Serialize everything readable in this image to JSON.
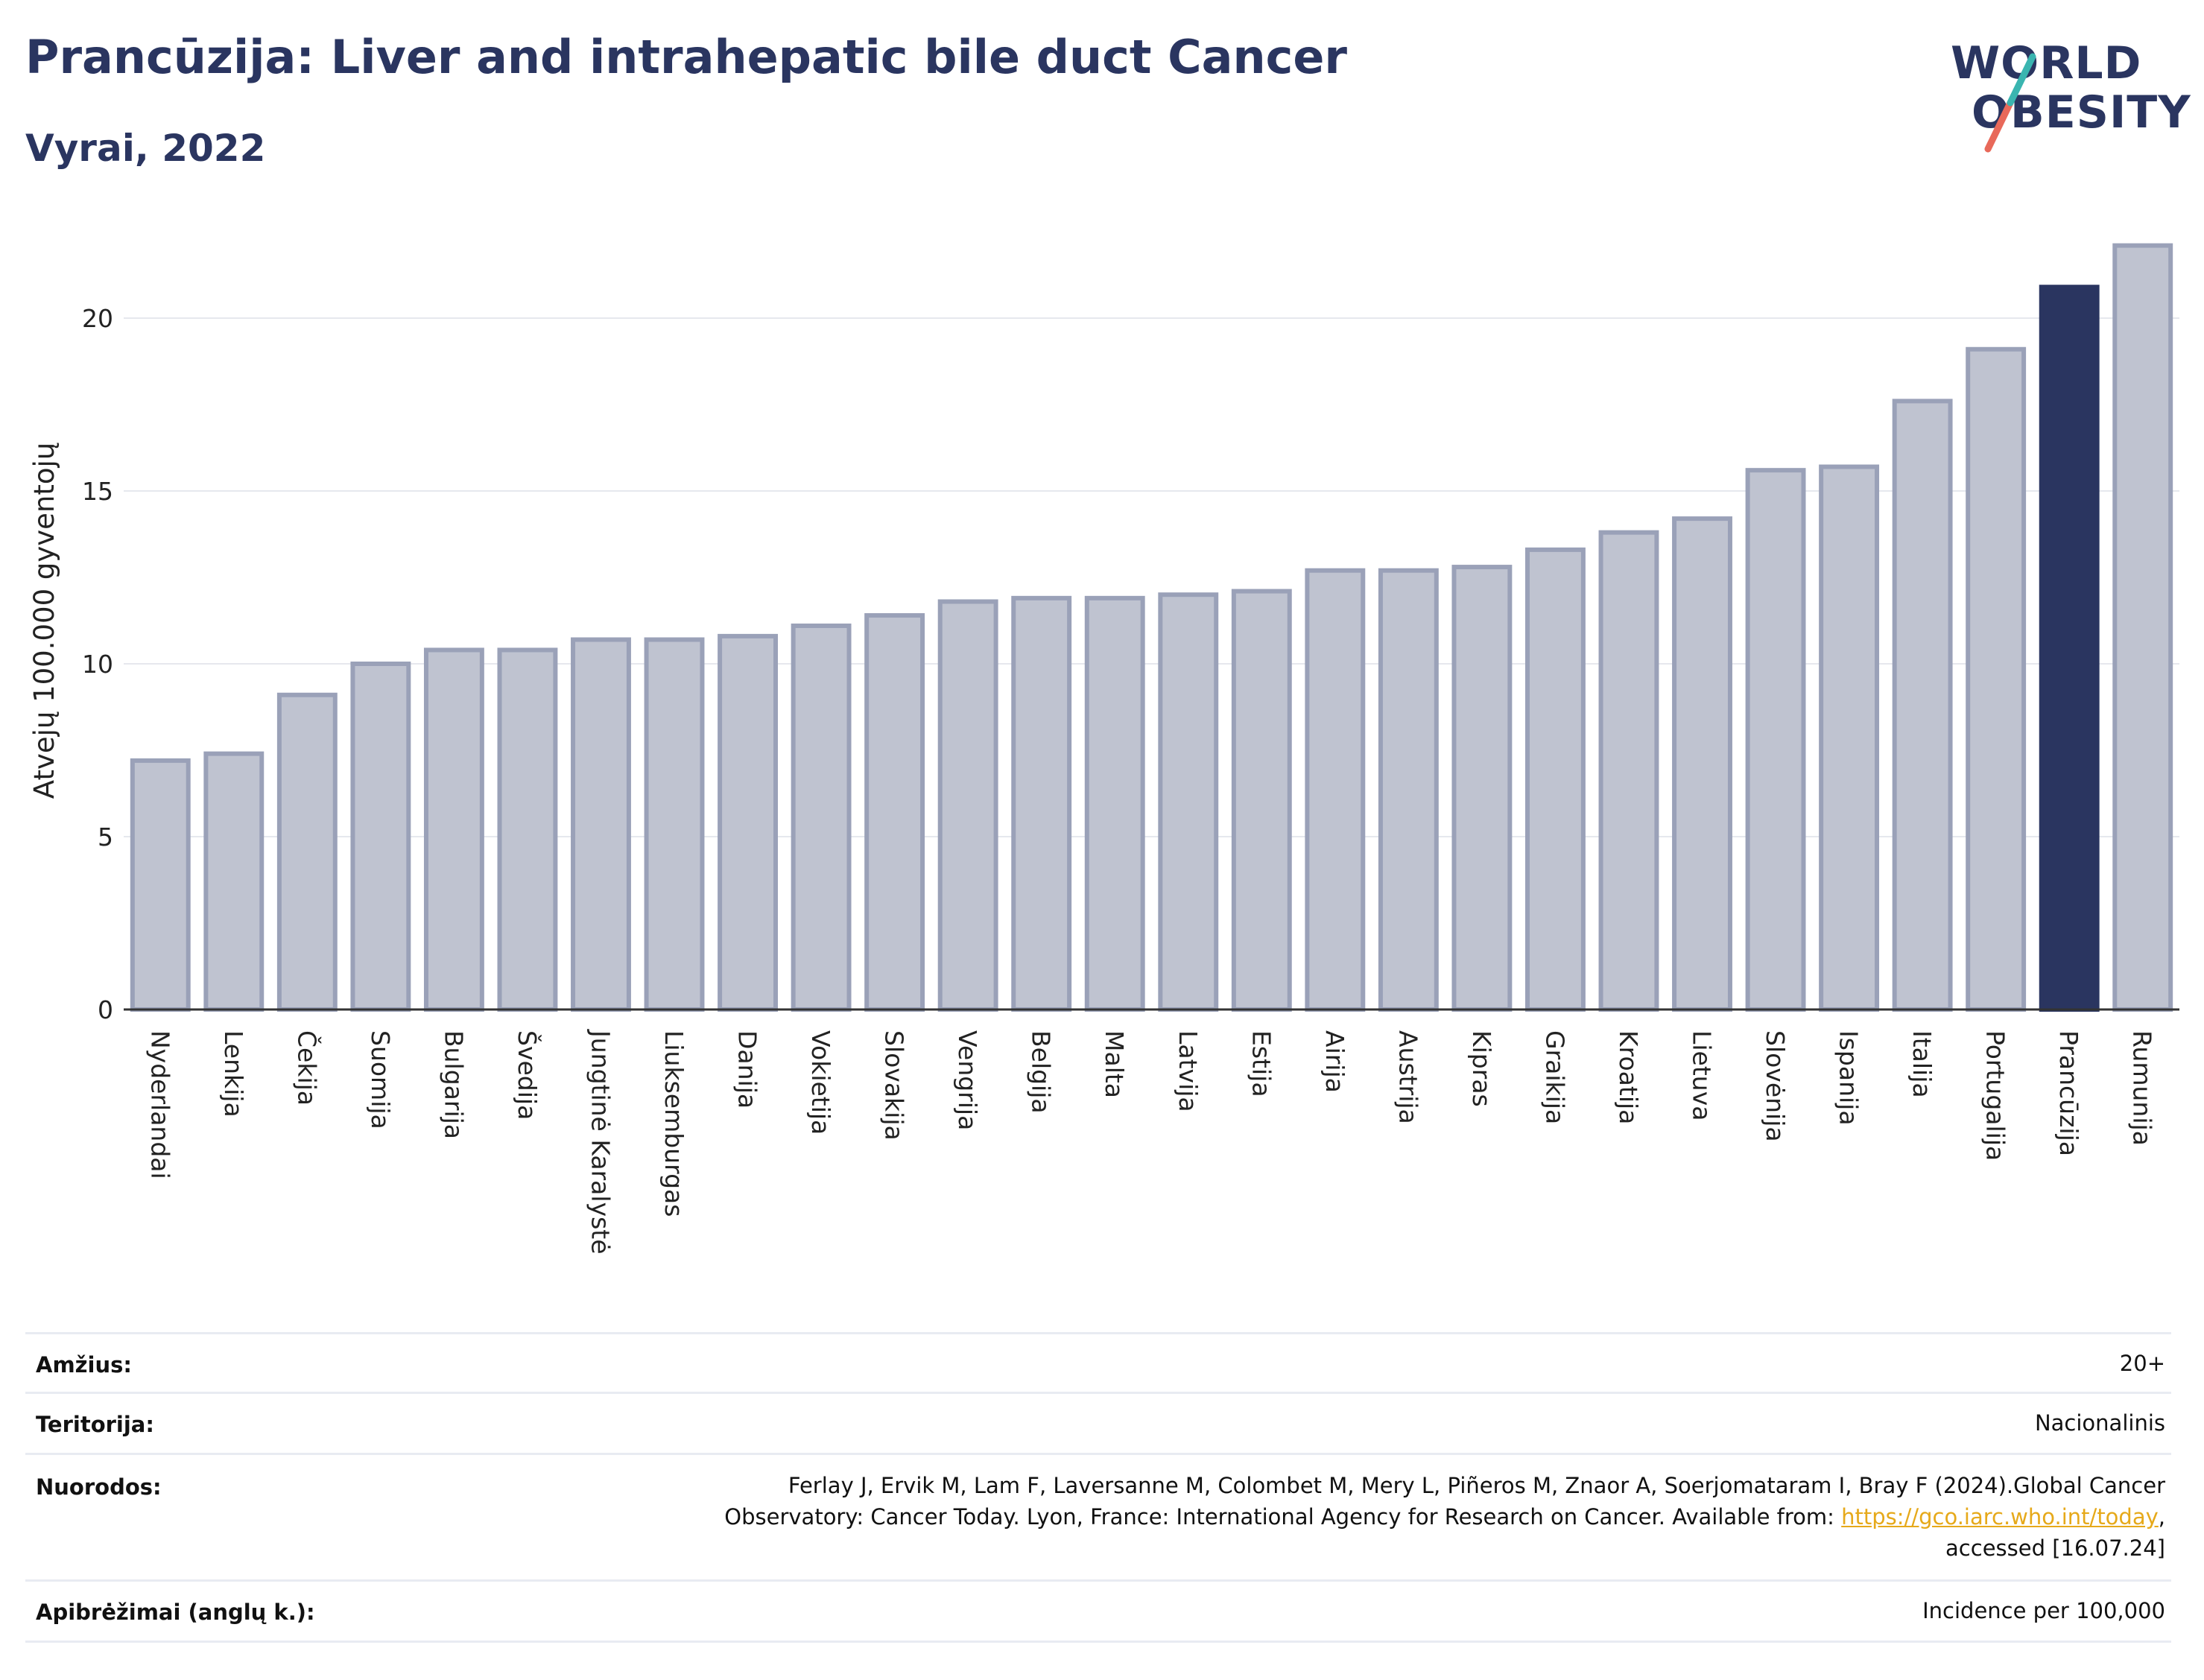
{
  "header": {
    "title": "Prancūzija: Liver and intrahepatic bile duct Cancer",
    "subtitle": "Vyrai, 2022"
  },
  "logo": {
    "line1": "WORLD",
    "line2": "OBESITY",
    "accent_teal": "#3ab5b0",
    "accent_red": "#e8695a"
  },
  "colors": {
    "bar": "#bfc3d0",
    "bar_border": "#9aa1b8",
    "highlight": "#2a3560",
    "grid": "#e6e8ee",
    "axis": "#333333"
  },
  "chart_data": {
    "type": "bar",
    "title": "Prancūzija: Liver and intrahepatic bile duct Cancer",
    "ylabel": "Atvejų 100.000 gyventojų",
    "xlabel": "",
    "ylim": [
      0,
      22.5
    ],
    "yticks": [
      0,
      5,
      10,
      15,
      20
    ],
    "grid": true,
    "highlight": "Prancūzija",
    "categories": [
      "Nyderlandai",
      "Lenkija",
      "Čekija",
      "Suomija",
      "Bulgarija",
      "Švedija",
      "Jungtinė Karalystė",
      "Liuksemburgas",
      "Danija",
      "Vokietija",
      "Slovakija",
      "Vengrija",
      "Belgija",
      "Malta",
      "Latvija",
      "Estija",
      "Airija",
      "Austrija",
      "Kipras",
      "Graikija",
      "Kroatija",
      "Lietuva",
      "Slovėnija",
      "Ispanija",
      "Italija",
      "Portugalija",
      "Prancūzija",
      "Rumunija"
    ],
    "values": [
      7.2,
      7.4,
      9.1,
      10.0,
      10.4,
      10.4,
      10.7,
      10.7,
      10.8,
      11.1,
      11.4,
      11.8,
      11.9,
      11.9,
      12.0,
      12.1,
      12.7,
      12.7,
      12.8,
      13.3,
      13.8,
      14.2,
      15.6,
      15.7,
      17.6,
      19.1,
      20.9,
      22.1
    ]
  },
  "meta": {
    "age_label": "Amžius:",
    "age_value": "20+",
    "territory_label": "Teritorija:",
    "territory_value": "Nacionalinis",
    "references_label": "Nuorodos:",
    "references_line1": "Ferlay J, Ervik M, Lam F, Laversanne M, Colombet M, Mery L, Piñeros M, Znaor A, Soerjomataram I, Bray F (2024).Global Cancer",
    "references_line2_pre": "Observatory: Cancer Today. Lyon, France: International Agency for Research on Cancer. Available from: ",
    "references_link": "https://gco.iarc.who.int/today",
    "references_line2_post": ",",
    "references_line3": "accessed [16.07.24]",
    "definitions_label": "Apibrėžimai (anglų k.):",
    "definitions_value": "Incidence per 100,000"
  }
}
